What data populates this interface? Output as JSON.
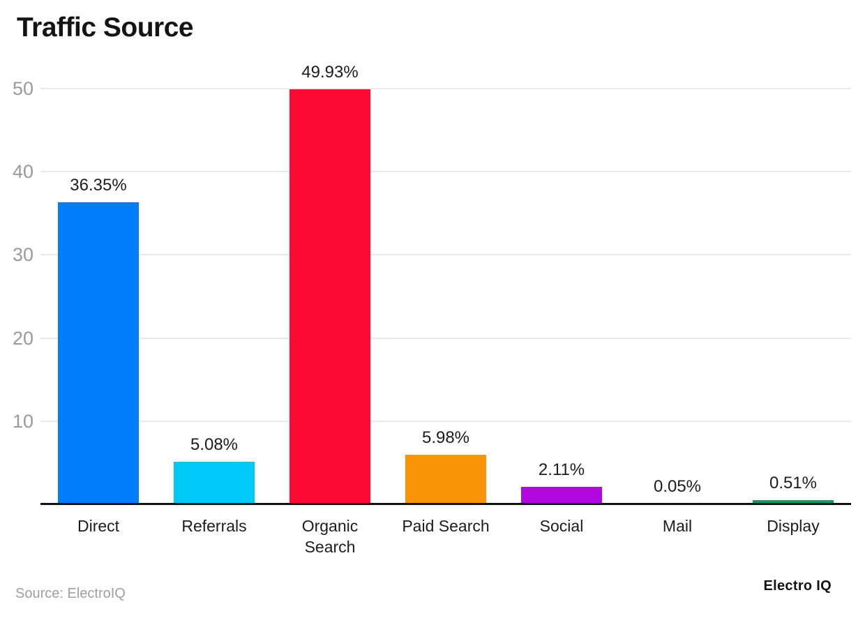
{
  "header": {
    "title": "Traffic Source"
  },
  "footer": {
    "source_note": "Source: ElectroIQ",
    "brand": "Electro IQ"
  },
  "chart_data": {
    "type": "bar",
    "title": "Traffic Source",
    "categories": [
      "Direct",
      "Referrals",
      "Organic Search",
      "Paid Search",
      "Social",
      "Mail",
      "Display"
    ],
    "values": [
      36.35,
      5.08,
      49.93,
      5.98,
      2.11,
      0.05,
      0.51
    ],
    "value_labels": [
      "36.35%",
      "5.08%",
      "49.93%",
      "5.98%",
      "2.11%",
      "0.05%",
      "0.51%"
    ],
    "bar_colors": [
      "#027df9",
      "#00c9f7",
      "#fb0a33",
      "#f99408",
      "#b207e0",
      "#b5b5b5",
      "#00a263"
    ],
    "ylim": [
      0,
      50
    ],
    "yticks": [
      10,
      20,
      30,
      40,
      50
    ],
    "grid": "horizontal-only",
    "legend": "none",
    "xlabel": "",
    "ylabel": "",
    "colors": {
      "grid_color": "#e9e9e9",
      "axis_color": "#111111",
      "tick_label_color": "#9a9a9a",
      "value_label_color": "#1c1c1c",
      "category_label_color": "#1c1c1c"
    }
  }
}
